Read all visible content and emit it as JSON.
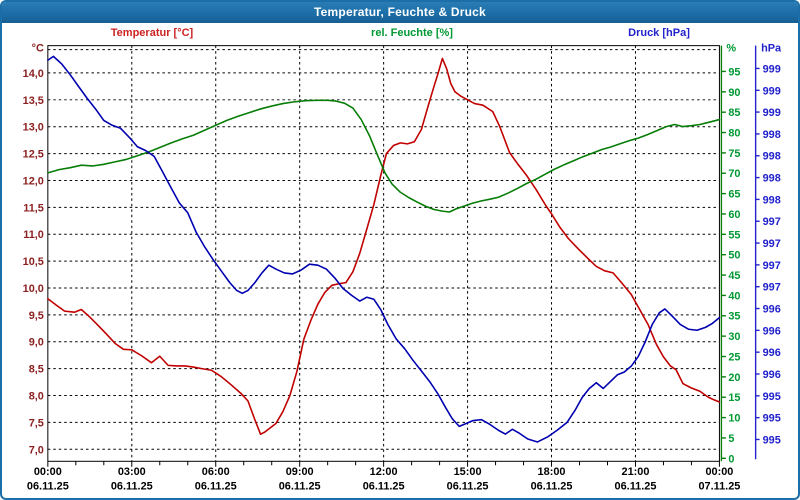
{
  "window": {
    "title": "Temperatur, Feuchte & Druck"
  },
  "legend": {
    "temperature": "Temperatur [°C]",
    "humidity": "rel. Feuchte [%]",
    "pressure": "Druck [hPa]"
  },
  "colors": {
    "window_chrome": "#1c6ea8",
    "temperature_line": "#c00000",
    "temperature_legend": "#cc2222",
    "temperature_ticks": "#8b2020",
    "humidity_line": "#067d06",
    "humidity_ticks": "#009933",
    "pressure_line": "#0000b0",
    "pressure_ticks": "#2222cc",
    "x_ticks": "#000000",
    "grid": "#000000"
  },
  "chart_data": {
    "type": "line",
    "title": "Temperatur, Feuchte & Druck",
    "x_axis": {
      "range_hours": [
        0,
        24
      ],
      "minor_tick_every_hours": 1,
      "ticks": [
        {
          "h": 0,
          "time": "00:00",
          "date": "06.11.25"
        },
        {
          "h": 3,
          "time": "03:00",
          "date": "06.11.25"
        },
        {
          "h": 6,
          "time": "06:00",
          "date": "06.11.25"
        },
        {
          "h": 9,
          "time": "09:00",
          "date": "06.11.25"
        },
        {
          "h": 12,
          "time": "12:00",
          "date": "06.11.25"
        },
        {
          "h": 15,
          "time": "15:00",
          "date": "06.11.25"
        },
        {
          "h": 18,
          "time": "18:00",
          "date": "06.11.25"
        },
        {
          "h": 21,
          "time": "21:00",
          "date": "06.11.25"
        },
        {
          "h": 24,
          "time": "00:00",
          "date": "07.11.25"
        }
      ]
    },
    "temp_axis": {
      "unit": "°C",
      "min": 7.0,
      "max": 14.5,
      "step": 0.5,
      "labels": [
        "14,0",
        "13,5",
        "13,0",
        "12,5",
        "12,0",
        "11,5",
        "11,0",
        "10,5",
        "10,0",
        "9,5",
        "9,0",
        "8,5",
        "8,0",
        "7,5",
        "7,0"
      ]
    },
    "humidity_axis": {
      "unit": "%",
      "min": 0,
      "max": 95,
      "step": 5,
      "labels": [
        "95",
        "90",
        "85",
        "80",
        "75",
        "70",
        "65",
        "60",
        "55",
        "50",
        "45",
        "40",
        "35",
        "30",
        "25",
        "20",
        "15",
        "10",
        "5",
        "0"
      ]
    },
    "pressure_axis": {
      "unit": "hPa",
      "labels": [
        "999",
        "999",
        "999",
        "998",
        "998",
        "998",
        "998",
        "997",
        "997",
        "997",
        "997",
        "996",
        "996",
        "996",
        "996",
        "995",
        "995",
        "995"
      ]
    },
    "series": [
      {
        "name": "Temperatur",
        "unit": "°C",
        "color": "#c00000",
        "axis": "temp",
        "points": [
          [
            0,
            9.8
          ],
          [
            0.3,
            9.68
          ],
          [
            0.6,
            9.57
          ],
          [
            0.95,
            9.55
          ],
          [
            1.2,
            9.6
          ],
          [
            1.5,
            9.46
          ],
          [
            1.8,
            9.3
          ],
          [
            2.1,
            9.14
          ],
          [
            2.4,
            8.97
          ],
          [
            2.7,
            8.86
          ],
          [
            3.0,
            8.85
          ],
          [
            3.35,
            8.74
          ],
          [
            3.7,
            8.61
          ],
          [
            4.0,
            8.73
          ],
          [
            4.3,
            8.56
          ],
          [
            4.6,
            8.55
          ],
          [
            4.9,
            8.55
          ],
          [
            5.2,
            8.53
          ],
          [
            5.5,
            8.5
          ],
          [
            5.85,
            8.47
          ],
          [
            6.2,
            8.35
          ],
          [
            6.55,
            8.2
          ],
          [
            6.9,
            8.04
          ],
          [
            7.15,
            7.9
          ],
          [
            7.4,
            7.55
          ],
          [
            7.6,
            7.28
          ],
          [
            7.75,
            7.32
          ],
          [
            7.95,
            7.4
          ],
          [
            8.15,
            7.48
          ],
          [
            8.4,
            7.7
          ],
          [
            8.65,
            8.0
          ],
          [
            8.9,
            8.45
          ],
          [
            9.15,
            9.05
          ],
          [
            9.4,
            9.4
          ],
          [
            9.65,
            9.7
          ],
          [
            9.9,
            9.92
          ],
          [
            10.15,
            10.05
          ],
          [
            10.4,
            10.08
          ],
          [
            10.65,
            10.1
          ],
          [
            10.9,
            10.3
          ],
          [
            11.15,
            10.65
          ],
          [
            11.4,
            11.1
          ],
          [
            11.65,
            11.55
          ],
          [
            11.9,
            12.1
          ],
          [
            12.1,
            12.5
          ],
          [
            12.35,
            12.65
          ],
          [
            12.6,
            12.7
          ],
          [
            12.85,
            12.68
          ],
          [
            13.1,
            12.72
          ],
          [
            13.35,
            12.95
          ],
          [
            13.6,
            13.4
          ],
          [
            13.8,
            13.75
          ],
          [
            13.95,
            14.0
          ],
          [
            14.1,
            14.27
          ],
          [
            14.25,
            14.08
          ],
          [
            14.4,
            13.8
          ],
          [
            14.55,
            13.65
          ],
          [
            14.75,
            13.57
          ],
          [
            15.0,
            13.5
          ],
          [
            15.25,
            13.43
          ],
          [
            15.55,
            13.4
          ],
          [
            15.9,
            13.28
          ],
          [
            16.15,
            13.0
          ],
          [
            16.5,
            12.52
          ],
          [
            16.8,
            12.3
          ],
          [
            17.1,
            12.1
          ],
          [
            17.45,
            11.83
          ],
          [
            17.8,
            11.53
          ],
          [
            18.0,
            11.38
          ],
          [
            18.3,
            11.13
          ],
          [
            18.6,
            10.92
          ],
          [
            18.95,
            10.73
          ],
          [
            19.3,
            10.55
          ],
          [
            19.6,
            10.4
          ],
          [
            19.9,
            10.32
          ],
          [
            20.2,
            10.28
          ],
          [
            20.5,
            10.1
          ],
          [
            20.85,
            9.88
          ],
          [
            21.15,
            9.6
          ],
          [
            21.45,
            9.32
          ],
          [
            21.75,
            8.95
          ],
          [
            22.0,
            8.72
          ],
          [
            22.25,
            8.55
          ],
          [
            22.45,
            8.48
          ],
          [
            22.7,
            8.22
          ],
          [
            23.0,
            8.14
          ],
          [
            23.3,
            8.08
          ],
          [
            23.6,
            7.97
          ],
          [
            23.8,
            7.92
          ],
          [
            24,
            7.88
          ]
        ]
      },
      {
        "name": "rel. Feuchte",
        "unit": "%",
        "color": "#067d06",
        "axis": "humidity",
        "points": [
          [
            0,
            69.0
          ],
          [
            0.4,
            69.8
          ],
          [
            0.8,
            70.3
          ],
          [
            1.2,
            70.9
          ],
          [
            1.6,
            70.7
          ],
          [
            2.0,
            71.1
          ],
          [
            2.4,
            71.7
          ],
          [
            2.8,
            72.3
          ],
          [
            3.2,
            73.2
          ],
          [
            3.6,
            74.1
          ],
          [
            4.0,
            75.2
          ],
          [
            4.4,
            76.3
          ],
          [
            4.8,
            77.3
          ],
          [
            5.2,
            78.2
          ],
          [
            5.6,
            79.4
          ],
          [
            6.0,
            80.6
          ],
          [
            6.4,
            81.8
          ],
          [
            6.8,
            82.8
          ],
          [
            7.2,
            83.7
          ],
          [
            7.6,
            84.6
          ],
          [
            8.0,
            85.3
          ],
          [
            8.4,
            85.9
          ],
          [
            8.8,
            86.3
          ],
          [
            9.2,
            86.6
          ],
          [
            9.6,
            86.7
          ],
          [
            10.0,
            86.7
          ],
          [
            10.3,
            86.5
          ],
          [
            10.6,
            86.0
          ],
          [
            10.9,
            84.8
          ],
          [
            11.2,
            82.0
          ],
          [
            11.5,
            78.0
          ],
          [
            11.8,
            73.0
          ],
          [
            12.05,
            69.0
          ],
          [
            12.3,
            66.3
          ],
          [
            12.6,
            64.3
          ],
          [
            12.9,
            63.0
          ],
          [
            13.2,
            61.9
          ],
          [
            13.5,
            60.9
          ],
          [
            13.8,
            60.1
          ],
          [
            14.1,
            59.7
          ],
          [
            14.35,
            59.5
          ],
          [
            14.6,
            60.3
          ],
          [
            14.9,
            61.0
          ],
          [
            15.2,
            61.7
          ],
          [
            15.5,
            62.2
          ],
          [
            15.8,
            62.6
          ],
          [
            16.1,
            63.1
          ],
          [
            16.45,
            64.1
          ],
          [
            16.8,
            65.3
          ],
          [
            17.1,
            66.4
          ],
          [
            17.45,
            67.5
          ],
          [
            17.8,
            68.8
          ],
          [
            18.1,
            69.9
          ],
          [
            18.45,
            71.0
          ],
          [
            18.8,
            72.0
          ],
          [
            19.1,
            72.9
          ],
          [
            19.45,
            73.8
          ],
          [
            19.8,
            74.7
          ],
          [
            20.1,
            75.3
          ],
          [
            20.45,
            76.1
          ],
          [
            20.8,
            76.9
          ],
          [
            21.1,
            77.5
          ],
          [
            21.45,
            78.4
          ],
          [
            21.8,
            79.4
          ],
          [
            22.1,
            80.3
          ],
          [
            22.4,
            80.8
          ],
          [
            22.7,
            80.3
          ],
          [
            23.0,
            80.5
          ],
          [
            23.3,
            80.8
          ],
          [
            23.6,
            81.3
          ],
          [
            24,
            82.0
          ]
        ]
      },
      {
        "name": "Druck",
        "unit": "hPa",
        "color": "#0000b0",
        "axis": "pressure",
        "points": [
          [
            0,
            999.37
          ],
          [
            0.2,
            999.41
          ],
          [
            0.5,
            999.33
          ],
          [
            0.8,
            999.22
          ],
          [
            1.1,
            999.1
          ],
          [
            1.4,
            998.98
          ],
          [
            1.7,
            998.87
          ],
          [
            2.0,
            998.75
          ],
          [
            2.3,
            998.7
          ],
          [
            2.6,
            998.67
          ],
          [
            2.9,
            998.58
          ],
          [
            3.2,
            998.48
          ],
          [
            3.5,
            998.44
          ],
          [
            3.8,
            998.38
          ],
          [
            4.1,
            998.22
          ],
          [
            4.4,
            998.06
          ],
          [
            4.7,
            997.9
          ],
          [
            5.0,
            997.8
          ],
          [
            5.3,
            997.6
          ],
          [
            5.6,
            997.45
          ],
          [
            5.9,
            997.32
          ],
          [
            6.2,
            997.2
          ],
          [
            6.5,
            997.08
          ],
          [
            6.75,
            997.0
          ],
          [
            6.95,
            996.97
          ],
          [
            7.15,
            997.0
          ],
          [
            7.4,
            997.08
          ],
          [
            7.65,
            997.18
          ],
          [
            7.9,
            997.26
          ],
          [
            8.15,
            997.22
          ],
          [
            8.45,
            997.18
          ],
          [
            8.75,
            997.17
          ],
          [
            9.05,
            997.21
          ],
          [
            9.35,
            997.27
          ],
          [
            9.65,
            997.26
          ],
          [
            9.95,
            997.22
          ],
          [
            10.25,
            997.13
          ],
          [
            10.55,
            997.02
          ],
          [
            10.85,
            996.95
          ],
          [
            11.15,
            996.89
          ],
          [
            11.4,
            996.93
          ],
          [
            11.65,
            996.91
          ],
          [
            11.9,
            996.8
          ],
          [
            12.15,
            996.65
          ],
          [
            12.45,
            996.5
          ],
          [
            12.75,
            996.4
          ],
          [
            13.05,
            996.28
          ],
          [
            13.35,
            996.17
          ],
          [
            13.65,
            996.06
          ],
          [
            13.95,
            995.93
          ],
          [
            14.2,
            995.8
          ],
          [
            14.45,
            995.68
          ],
          [
            14.7,
            995.6
          ],
          [
            14.95,
            995.63
          ],
          [
            15.2,
            995.66
          ],
          [
            15.5,
            995.67
          ],
          [
            15.8,
            995.62
          ],
          [
            16.1,
            995.56
          ],
          [
            16.35,
            995.52
          ],
          [
            16.6,
            995.57
          ],
          [
            16.85,
            995.53
          ],
          [
            17.15,
            995.47
          ],
          [
            17.5,
            995.44
          ],
          [
            17.85,
            995.49
          ],
          [
            18.2,
            995.56
          ],
          [
            18.55,
            995.64
          ],
          [
            18.85,
            995.77
          ],
          [
            19.1,
            995.9
          ],
          [
            19.35,
            995.99
          ],
          [
            19.6,
            996.05
          ],
          [
            19.85,
            995.99
          ],
          [
            20.1,
            996.06
          ],
          [
            20.35,
            996.13
          ],
          [
            20.6,
            996.16
          ],
          [
            20.85,
            996.22
          ],
          [
            21.1,
            996.32
          ],
          [
            21.35,
            996.47
          ],
          [
            21.6,
            996.65
          ],
          [
            21.85,
            996.77
          ],
          [
            22.05,
            996.81
          ],
          [
            22.3,
            996.74
          ],
          [
            22.6,
            996.65
          ],
          [
            22.9,
            996.6
          ],
          [
            23.2,
            996.59
          ],
          [
            23.5,
            996.62
          ],
          [
            23.75,
            996.66
          ],
          [
            24,
            996.72
          ]
        ]
      }
    ]
  }
}
